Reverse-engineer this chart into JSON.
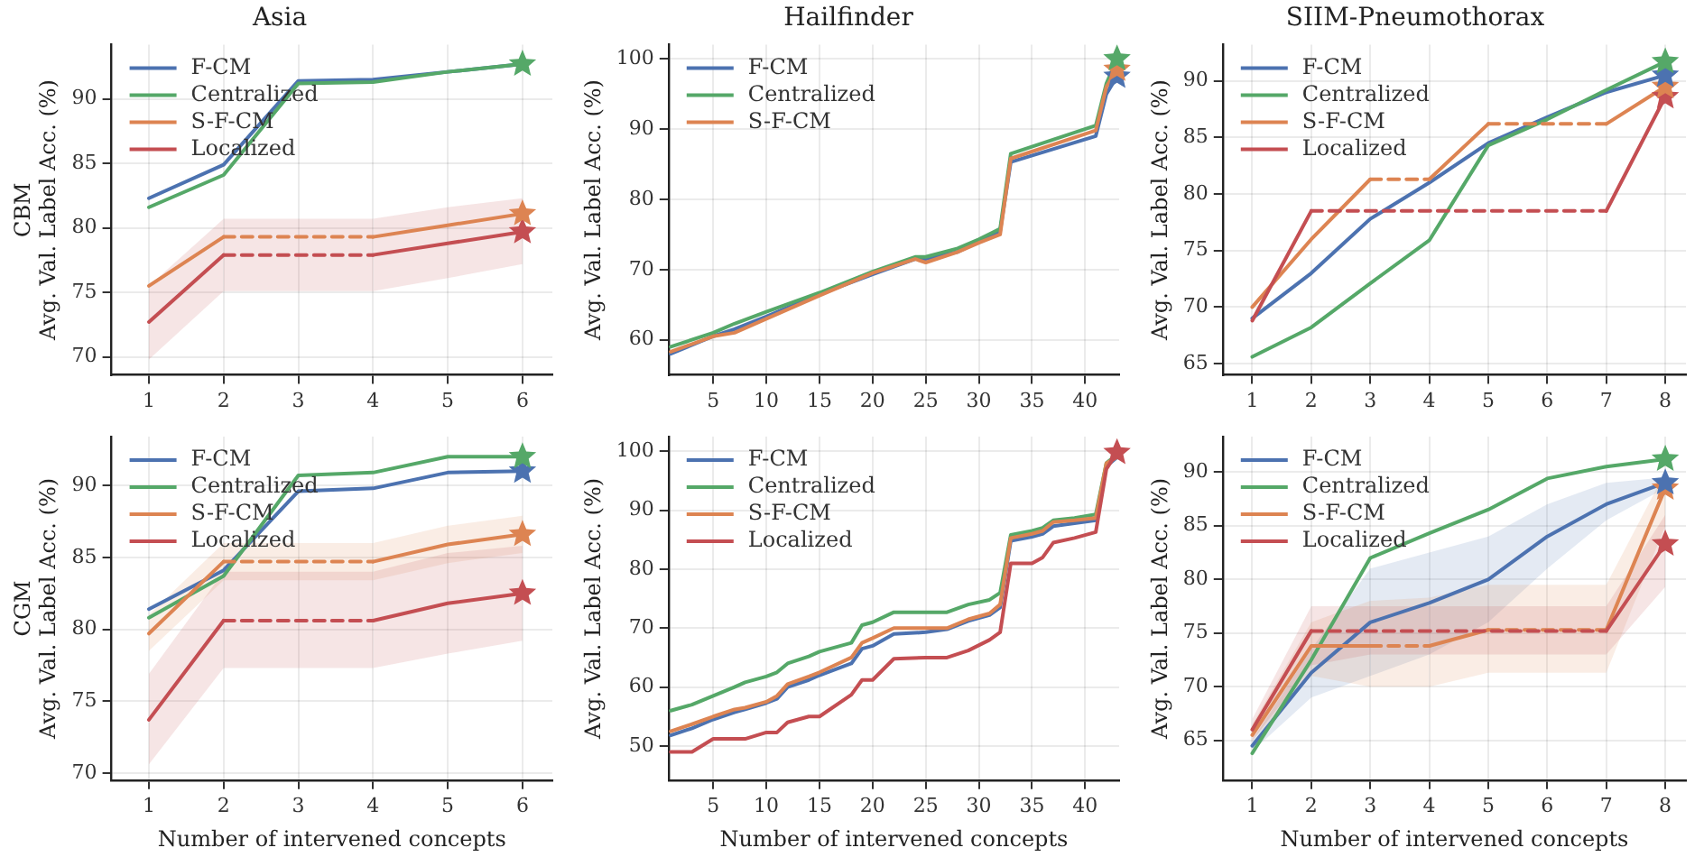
{
  "chart_data": [
    {
      "type": "line",
      "title": "Asia",
      "ylabel": "CBM\nAvg. Val. Label Acc. (%)",
      "xlim": [
        0.5,
        6.4
      ],
      "xticks": [
        1,
        2,
        3,
        4,
        5,
        6
      ],
      "ylim": [
        68.6,
        94.2
      ],
      "yticks": [
        70,
        75,
        80,
        85,
        90
      ],
      "grid": true,
      "legend": "top left",
      "series": [
        {
          "name": "Localized",
          "color": "#c44e52",
          "x": [
            1,
            2
          ],
          "values": [
            72.7,
            77.9
          ],
          "lower": [
            69.8,
            75.1
          ],
          "upper": [
            75.5,
            80.7
          ]
        },
        {
          "color": "#c44e52",
          "x": [
            2,
            3,
            4
          ],
          "values": [
            77.9,
            77.9,
            77.9
          ],
          "line_style": "dashed",
          "lower": [
            75.1,
            75.1,
            75.1
          ],
          "upper": [
            80.7,
            80.7,
            80.7
          ]
        },
        {
          "color": "#c44e52",
          "x": [
            4,
            5,
            6
          ],
          "values": [
            77.9,
            78.8,
            79.7
          ],
          "lower": [
            75.1,
            76.1,
            77.2
          ],
          "upper": [
            80.7,
            81.6,
            82.3
          ]
        },
        {
          "name": "S-F-CM",
          "color": "#dd8452",
          "x": [
            1,
            2
          ],
          "values": [
            75.5,
            79.3
          ]
        },
        {
          "color": "#dd8452",
          "x": [
            2,
            3,
            4
          ],
          "values": [
            79.3,
            79.3,
            79.3
          ],
          "line_style": "dashed"
        },
        {
          "color": "#dd8452",
          "x": [
            4,
            5,
            6
          ],
          "values": [
            79.3,
            80.2,
            81.1
          ]
        },
        {
          "name": "Centralized",
          "color": "#55a868",
          "x": [
            1,
            2,
            3,
            4,
            5,
            6
          ],
          "values": [
            81.6,
            84.1,
            91.2,
            91.3,
            92.1,
            92.7
          ]
        },
        {
          "name": "F-CM",
          "color": "#4c72b0",
          "x": [
            1,
            2,
            3,
            4,
            5,
            6
          ],
          "values": [
            82.3,
            84.9,
            91.4,
            91.5,
            92.1,
            92.7
          ]
        },
        {
          "type": "scatter",
          "marker": "star",
          "x": [
            6,
            6,
            6
          ],
          "values": [
            92.7,
            81.1,
            79.7
          ],
          "colors": [
            "#55a868",
            "#dd8452",
            "#c44e52"
          ]
        }
      ]
    },
    {
      "type": "line",
      "title": "Hailfinder",
      "ylabel": "Avg. Val. Label Acc. (%)",
      "xlim": [
        0.8,
        43.2
      ],
      "xticks": [
        5,
        10,
        15,
        20,
        25,
        30,
        35,
        40
      ],
      "ylim": [
        55,
        102
      ],
      "yticks": [
        60,
        70,
        80,
        90,
        100
      ],
      "grid": true,
      "legend": "top left",
      "series": [
        {
          "name": "S-F-CM",
          "color": "#dd8452",
          "x": [
            1,
            5,
            7,
            10,
            15,
            20,
            24,
            25,
            28,
            30,
            32,
            33,
            41,
            42,
            43
          ],
          "values": [
            58.3,
            60.5,
            61,
            63,
            66.3,
            69.5,
            71.5,
            71,
            72.5,
            73.8,
            75,
            85.8,
            89.8,
            96,
            98.5
          ]
        },
        {
          "name": "Centralized",
          "color": "#55a868",
          "x": [
            1,
            5,
            7,
            10,
            15,
            20,
            24,
            25,
            28,
            30,
            32,
            33,
            41,
            42,
            43
          ],
          "values": [
            59,
            61,
            62.3,
            64,
            66.7,
            69.7,
            71.8,
            71.8,
            73,
            74.3,
            75.8,
            86.5,
            90.5,
            96.5,
            100
          ]
        },
        {
          "name": "F-CM",
          "color": "#4c72b0",
          "x": [
            1,
            5,
            7,
            10,
            15,
            20,
            24,
            25,
            28,
            30,
            32,
            33,
            41,
            42,
            43
          ],
          "values": [
            58,
            60.5,
            61.5,
            63.3,
            66.5,
            69.3,
            71.5,
            71.5,
            72.5,
            74,
            75.5,
            85.3,
            89,
            95,
            97.5
          ]
        },
        {
          "type": "scatter",
          "marker": "star",
          "x": [
            43,
            43,
            43
          ],
          "values": [
            100,
            98.5,
            97.5
          ],
          "colors": [
            "#55a868",
            "#dd8452",
            "#4c72b0"
          ]
        }
      ]
    },
    {
      "type": "line",
      "title": "SIIM-Pneumothorax",
      "ylabel": "Avg. Val. Label Acc. (%)",
      "xlim": [
        0.5,
        8.35
      ],
      "xticks": [
        1,
        2,
        3,
        4,
        5,
        6,
        7,
        8
      ],
      "ylim": [
        64,
        93.2
      ],
      "yticks": [
        65,
        70,
        75,
        80,
        85,
        90
      ],
      "grid": true,
      "legend": "top left",
      "series": [
        {
          "name": "Localized",
          "color": "#c44e52",
          "x": [
            1,
            2
          ],
          "values": [
            68.8,
            78.5
          ]
        },
        {
          "color": "#c44e52",
          "x": [
            2,
            3,
            4,
            5,
            6,
            7
          ],
          "values": [
            78.5,
            78.5,
            78.5,
            78.5,
            78.5,
            78.5
          ],
          "line_style": "dashed"
        },
        {
          "color": "#c44e52",
          "x": [
            7,
            8
          ],
          "values": [
            78.5,
            88.6
          ]
        },
        {
          "name": "S-F-CM",
          "color": "#dd8452",
          "x": [
            1,
            2,
            3
          ],
          "values": [
            70,
            76,
            81.3
          ]
        },
        {
          "color": "#dd8452",
          "x": [
            3,
            4
          ],
          "values": [
            81.3,
            81.3
          ],
          "line_style": "dashed"
        },
        {
          "color": "#dd8452",
          "x": [
            4,
            5
          ],
          "values": [
            81.3,
            86.2
          ]
        },
        {
          "color": "#dd8452",
          "x": [
            5,
            6,
            7
          ],
          "values": [
            86.2,
            86.2,
            86.2
          ],
          "line_style": "dashed"
        },
        {
          "color": "#dd8452",
          "x": [
            7,
            8
          ],
          "values": [
            86.2,
            89.5
          ]
        },
        {
          "name": "Centralized",
          "color": "#55a868",
          "x": [
            1,
            2,
            3,
            4,
            5,
            6,
            7,
            8
          ],
          "values": [
            65.6,
            68.2,
            72.1,
            75.9,
            84.3,
            86.6,
            89.2,
            91.7
          ]
        },
        {
          "name": "F-CM",
          "color": "#4c72b0",
          "x": [
            1,
            2,
            3,
            4,
            5,
            6,
            7,
            8
          ],
          "values": [
            69,
            73,
            77.8,
            81,
            84.5,
            86.8,
            89,
            90.5
          ]
        },
        {
          "type": "scatter",
          "marker": "star",
          "x": [
            8,
            8,
            8,
            8
          ],
          "values": [
            91.7,
            90.5,
            89.5,
            88.6
          ],
          "colors": [
            "#55a868",
            "#4c72b0",
            "#dd8452",
            "#c44e52"
          ]
        }
      ]
    },
    {
      "type": "line",
      "ylabel": "CGM\nAvg. Val. Label Acc. (%)",
      "xlabel": "Number of intervened concepts",
      "xlim": [
        0.5,
        6.4
      ],
      "xticks": [
        1,
        2,
        3,
        4,
        5,
        6
      ],
      "ylim": [
        69.5,
        93.4
      ],
      "yticks": [
        70,
        75,
        80,
        85,
        90
      ],
      "grid": true,
      "legend": "top left",
      "series": [
        {
          "name": "Localized",
          "color": "#c44e52",
          "x": [
            1,
            2
          ],
          "values": [
            73.7,
            80.6
          ],
          "lower": [
            70.6,
            77.3
          ],
          "upper": [
            76.9,
            84
          ]
        },
        {
          "color": "#c44e52",
          "x": [
            2,
            3,
            4
          ],
          "values": [
            80.6,
            80.6,
            80.6
          ],
          "line_style": "dashed",
          "lower": [
            77.3,
            77.3,
            77.3
          ],
          "upper": [
            84,
            84,
            84
          ]
        },
        {
          "color": "#c44e52",
          "x": [
            4,
            5,
            6
          ],
          "values": [
            80.6,
            81.8,
            82.5
          ],
          "lower": [
            77.3,
            78.3,
            79.2
          ],
          "upper": [
            84,
            85.3,
            85.8
          ]
        },
        {
          "name": "S-F-CM",
          "color": "#dd8452",
          "x": [
            1,
            2
          ],
          "values": [
            79.7,
            84.7
          ],
          "lower": [
            78.5,
            83.4
          ],
          "upper": [
            81,
            86
          ]
        },
        {
          "color": "#dd8452",
          "x": [
            2,
            3,
            4
          ],
          "values": [
            84.7,
            84.7,
            84.7
          ],
          "line_style": "dashed",
          "lower": [
            83.4,
            83.4,
            83.4
          ],
          "upper": [
            86,
            86,
            86
          ]
        },
        {
          "color": "#dd8452",
          "x": [
            4,
            5,
            6
          ],
          "values": [
            84.7,
            85.9,
            86.6
          ],
          "lower": [
            83.4,
            84.6,
            85.3
          ],
          "upper": [
            86,
            87.2,
            87.9
          ]
        },
        {
          "name": "Centralized",
          "color": "#55a868",
          "x": [
            1,
            2,
            3,
            4,
            5,
            6
          ],
          "values": [
            80.8,
            83.7,
            90.7,
            90.9,
            92,
            92
          ]
        },
        {
          "name": "F-CM",
          "color": "#4c72b0",
          "x": [
            1,
            2,
            3,
            4,
            5,
            6
          ],
          "values": [
            81.4,
            84.1,
            89.6,
            89.8,
            90.9,
            91
          ]
        },
        {
          "type": "scatter",
          "marker": "star",
          "x": [
            6,
            6,
            6,
            6
          ],
          "values": [
            92,
            91,
            86.6,
            82.5
          ],
          "colors": [
            "#55a868",
            "#4c72b0",
            "#dd8452",
            "#c44e52"
          ]
        }
      ]
    },
    {
      "type": "line",
      "ylabel": "Avg. Val. Label Acc. (%)",
      "xlabel": "Number of intervened concepts",
      "xlim": [
        0.8,
        43.2
      ],
      "xticks": [
        5,
        10,
        15,
        20,
        25,
        30,
        35,
        40
      ],
      "ylim": [
        44.2,
        102.5
      ],
      "yticks": [
        50,
        60,
        70,
        80,
        90,
        100
      ],
      "grid": true,
      "legend": "top left",
      "series": [
        {
          "name": "Localized",
          "color": "#c44e52",
          "x": [
            1,
            3,
            5,
            7,
            8,
            10,
            11,
            12,
            14,
            15,
            18,
            19,
            20,
            22,
            25,
            27,
            29,
            31,
            32,
            33,
            35,
            36,
            37,
            39,
            41,
            42,
            43
          ],
          "values": [
            49,
            49,
            51.2,
            51.2,
            51.2,
            52.3,
            52.3,
            54,
            55,
            55,
            58.7,
            61.2,
            61.2,
            64.8,
            65,
            65,
            66.2,
            68,
            69.3,
            81,
            81,
            82,
            84.5,
            85.3,
            86.3,
            97,
            99.8
          ]
        },
        {
          "name": "S-F-CM",
          "color": "#dd8452",
          "x": [
            1,
            3,
            5,
            7,
            8,
            10,
            11,
            12,
            14,
            15,
            18,
            19,
            20,
            22,
            25,
            27,
            29,
            31,
            32,
            33,
            35,
            36,
            37,
            39,
            41,
            42,
            43
          ],
          "values": [
            52.5,
            53.7,
            55,
            56.2,
            56.5,
            57.5,
            58.5,
            60.5,
            61.8,
            62.5,
            65,
            67.5,
            68.3,
            70,
            70,
            70,
            71.5,
            72.5,
            74,
            85.3,
            86,
            86.5,
            88,
            88.3,
            88.7,
            98,
            99
          ]
        },
        {
          "name": "Centralized",
          "color": "#55a868",
          "x": [
            1,
            3,
            5,
            7,
            8,
            10,
            11,
            12,
            14,
            15,
            18,
            19,
            20,
            22,
            25,
            27,
            29,
            31,
            32,
            33,
            35,
            36,
            37,
            39,
            41,
            42,
            43
          ],
          "values": [
            56,
            57,
            58.5,
            60,
            60.8,
            61.8,
            62.5,
            64,
            65.2,
            66,
            67.5,
            70.5,
            71,
            72.7,
            72.7,
            72.7,
            74,
            74.8,
            76,
            85.8,
            86.5,
            87,
            88.3,
            88.7,
            89.3,
            98,
            99.5
          ]
        },
        {
          "name": "F-CM",
          "color": "#4c72b0",
          "x": [
            1,
            3,
            5,
            7,
            8,
            10,
            11,
            12,
            14,
            15,
            18,
            19,
            20,
            22,
            25,
            27,
            29,
            31,
            32,
            33,
            35,
            36,
            37,
            39,
            41,
            42,
            43
          ],
          "values": [
            51.8,
            53,
            54.5,
            55.7,
            56.2,
            57.3,
            58,
            60,
            61.2,
            62,
            64,
            66.5,
            67,
            69,
            69.3,
            69.8,
            71.2,
            72.2,
            73.5,
            84.8,
            85.5,
            86,
            87.3,
            87.8,
            88.3,
            97.5,
            99
          ]
        },
        {
          "type": "scatter",
          "marker": "star",
          "x": [
            43
          ],
          "values": [
            99.8
          ],
          "colors": [
            "#c44e52"
          ]
        }
      ]
    },
    {
      "type": "line",
      "ylabel": "Avg. Val. Label Acc. (%)",
      "xlabel": "Number of intervened concepts",
      "xlim": [
        0.5,
        8.35
      ],
      "xticks": [
        1,
        2,
        3,
        4,
        5,
        6,
        7,
        8
      ],
      "ylim": [
        61.3,
        93.3
      ],
      "yticks": [
        65,
        70,
        75,
        80,
        85,
        90
      ],
      "grid": true,
      "legend": "top left",
      "series": [
        {
          "name": "Localized",
          "color": "#c44e52",
          "x": [
            1,
            2
          ],
          "values": [
            66,
            75.2
          ],
          "lower": [
            65,
            72
          ],
          "upper": [
            67,
            77.5
          ]
        },
        {
          "color": "#c44e52",
          "x": [
            2,
            3,
            4,
            5,
            6,
            7
          ],
          "values": [
            75.2,
            75.2,
            75.2,
            75.2,
            75.2,
            75.2
          ],
          "line_style": "dashed",
          "lower": [
            72,
            73,
            73,
            73,
            73,
            73
          ],
          "upper": [
            77.5,
            77.5,
            77.5,
            77.5,
            77.5,
            77.5
          ]
        },
        {
          "color": "#c44e52",
          "x": [
            7,
            8
          ],
          "values": [
            75.2,
            83.3
          ],
          "lower": [
            73,
            79.3
          ],
          "upper": [
            77.5,
            86
          ]
        },
        {
          "name": "S-F-CM",
          "color": "#dd8452",
          "x": [
            1,
            2,
            3
          ],
          "values": [
            65.5,
            73.8,
            73.8
          ],
          "lower": [
            65,
            71,
            70
          ],
          "upper": [
            66.5,
            76,
            78
          ]
        },
        {
          "color": "#dd8452",
          "x": [
            3,
            4
          ],
          "values": [
            73.8,
            73.8
          ],
          "line_style": "dashed",
          "lower": [
            70,
            70
          ],
          "upper": [
            78,
            78.3
          ]
        },
        {
          "color": "#dd8452",
          "x": [
            4,
            5
          ],
          "values": [
            73.8,
            75.3
          ],
          "lower": [
            70,
            71.3
          ],
          "upper": [
            78.3,
            79.5
          ]
        },
        {
          "color": "#dd8452",
          "x": [
            5,
            6,
            7
          ],
          "values": [
            75.3,
            75.3,
            75.3
          ],
          "line_style": "dashed",
          "lower": [
            71.3,
            71.3,
            71.3
          ],
          "upper": [
            79.5,
            79.5,
            79.5
          ]
        },
        {
          "color": "#dd8452",
          "x": [
            7,
            8
          ],
          "values": [
            75.3,
            88.5
          ],
          "lower": [
            71.3,
            85
          ],
          "upper": [
            79.5,
            90
          ]
        },
        {
          "name": "Centralized",
          "color": "#55a868",
          "x": [
            1,
            2,
            3,
            4,
            5,
            6,
            7,
            8
          ],
          "values": [
            63.8,
            72.5,
            82,
            84.3,
            86.5,
            89.4,
            90.5,
            91.2
          ]
        },
        {
          "name": "F-CM",
          "color": "#4c72b0",
          "x": [
            1,
            2,
            3,
            4,
            5,
            6,
            7,
            8
          ],
          "values": [
            64.5,
            71.3,
            76,
            77.8,
            80,
            84,
            87,
            89
          ],
          "lower": [
            64,
            69,
            71,
            73,
            76,
            81,
            85.5,
            88.5
          ],
          "upper": [
            65,
            73.5,
            81,
            82.5,
            84,
            87,
            89,
            89.5
          ]
        },
        {
          "type": "scatter",
          "marker": "star",
          "x": [
            8,
            8,
            8,
            8
          ],
          "values": [
            91.2,
            89,
            88.5,
            83.3
          ],
          "colors": [
            "#55a868",
            "#4c72b0",
            "#dd8452",
            "#c44e52"
          ]
        }
      ]
    }
  ]
}
